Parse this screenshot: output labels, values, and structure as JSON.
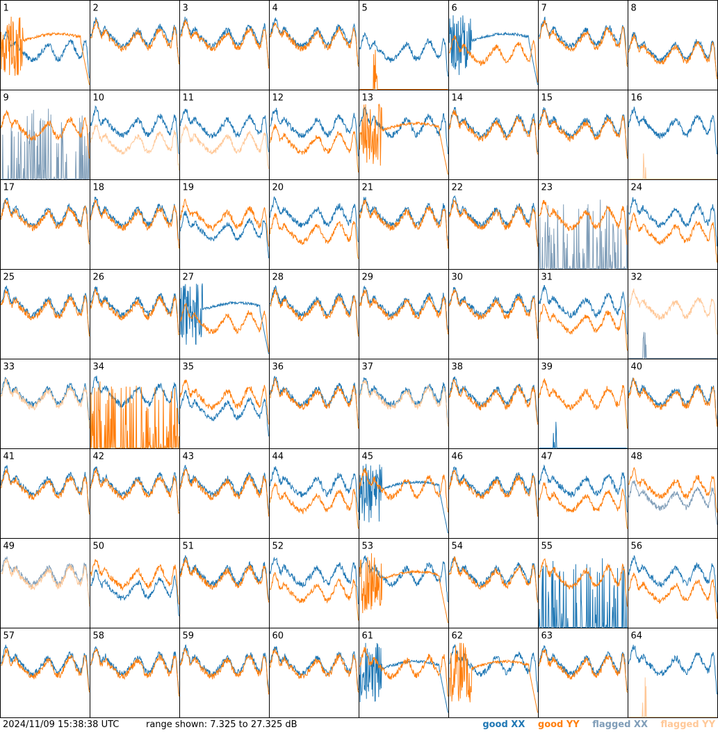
{
  "footer": {
    "timestamp": "2024/11/09 15:38:38 UTC",
    "range_text": "range shown: 7.325 to 27.325 dB"
  },
  "legend": {
    "good_xx": "good XX",
    "good_yy": "good YY",
    "flagged_xx": "flagged XX",
    "flagged_yy": "flagged YY"
  },
  "colors": {
    "good_xx": "#1f77b4",
    "good_yy": "#ff7f0e",
    "flagged_xx": "#7f9db8",
    "flagged_yy": "#ffc898"
  },
  "chart_data": {
    "type": "line",
    "grid": "8x8 small multiples",
    "ylim_db": [
      7.325,
      27.325
    ],
    "panels": [
      {
        "label": "1",
        "xx": "sag-good",
        "yy": "broken-good"
      },
      {
        "label": "2",
        "xx": "normal-good",
        "yy": "normal-good"
      },
      {
        "label": "3",
        "xx": "normal-good",
        "yy": "normal-good"
      },
      {
        "label": "4",
        "xx": "normal-good",
        "yy": "normal-good"
      },
      {
        "label": "5",
        "xx": "sag-good",
        "yy": "dead-good"
      },
      {
        "label": "6",
        "xx": "broken-good",
        "yy": "sag-good"
      },
      {
        "label": "7",
        "xx": "normal-good",
        "yy": "normal-good"
      },
      {
        "label": "8",
        "xx": "sag-good",
        "yy": "sag-good"
      },
      {
        "label": "9",
        "xx": "spikes-flagged",
        "yy": "normal-good"
      },
      {
        "label": "10",
        "xx": "normal-good",
        "yy": "sag-flagged"
      },
      {
        "label": "11",
        "xx": "normal-good",
        "yy": "sag-flagged"
      },
      {
        "label": "12",
        "xx": "normal-good",
        "yy": "sag-good"
      },
      {
        "label": "13",
        "xx": "normal-good",
        "yy": "broken-good"
      },
      {
        "label": "14",
        "xx": "normal-good",
        "yy": "normal-good"
      },
      {
        "label": "15",
        "xx": "normal-good",
        "yy": "normal-good"
      },
      {
        "label": "16",
        "xx": "normal-good",
        "yy": "dead-flagged"
      },
      {
        "label": "17",
        "xx": "normal-good",
        "yy": "normal-good"
      },
      {
        "label": "18",
        "xx": "normal-good",
        "yy": "normal-good"
      },
      {
        "label": "19",
        "xx": "sag-good",
        "yy": "normal-good"
      },
      {
        "label": "20",
        "xx": "normal-good",
        "yy": "sag-good"
      },
      {
        "label": "21",
        "xx": "normal-good",
        "yy": "normal-good"
      },
      {
        "label": "22",
        "xx": "normal-good",
        "yy": "normal-good"
      },
      {
        "label": "23",
        "xx": "spikes-flagged",
        "yy": "normal-good"
      },
      {
        "label": "24",
        "xx": "normal-good",
        "yy": "sag-good"
      },
      {
        "label": "25",
        "xx": "normal-good",
        "yy": "normal-good"
      },
      {
        "label": "26",
        "xx": "normal-good",
        "yy": "normal-good"
      },
      {
        "label": "27",
        "xx": "broken-good",
        "yy": "sag-good"
      },
      {
        "label": "28",
        "xx": "normal-good",
        "yy": "normal-good"
      },
      {
        "label": "29",
        "xx": "normal-good",
        "yy": "normal-good"
      },
      {
        "label": "30",
        "xx": "normal-good",
        "yy": "normal-good"
      },
      {
        "label": "31",
        "xx": "normal-good",
        "yy": "sag-good"
      },
      {
        "label": "32",
        "xx": "dead-flagged",
        "yy": "normal-flagged"
      },
      {
        "label": "33",
        "xx": "normal-good",
        "yy": "normal-flagged"
      },
      {
        "label": "34",
        "xx": "normal-good",
        "yy": "spikes-good"
      },
      {
        "label": "35",
        "xx": "sag-good",
        "yy": "normal-good"
      },
      {
        "label": "36",
        "xx": "normal-good",
        "yy": "normal-good"
      },
      {
        "label": "37",
        "xx": "normal-good",
        "yy": "normal-flagged"
      },
      {
        "label": "38",
        "xx": "normal-good",
        "yy": "normal-good"
      },
      {
        "label": "39",
        "xx": "dead-good",
        "yy": "normal-good"
      },
      {
        "label": "40",
        "xx": "normal-good",
        "yy": "normal-good"
      },
      {
        "label": "41",
        "xx": "normal-good",
        "yy": "normal-good"
      },
      {
        "label": "42",
        "xx": "normal-good",
        "yy": "normal-good"
      },
      {
        "label": "43",
        "xx": "normal-good",
        "yy": "normal-good"
      },
      {
        "label": "44",
        "xx": "normal-good",
        "yy": "sag-good"
      },
      {
        "label": "45",
        "xx": "broken-good",
        "yy": "normal-good"
      },
      {
        "label": "46",
        "xx": "normal-good",
        "yy": "normal-good"
      },
      {
        "label": "47",
        "xx": "normal-good",
        "yy": "sag-good"
      },
      {
        "label": "48",
        "xx": "sag-flagged",
        "yy": "normal-good"
      },
      {
        "label": "49",
        "xx": "normal-flagged",
        "yy": "normal-flagged"
      },
      {
        "label": "50",
        "xx": "sag-good",
        "yy": "normal-good"
      },
      {
        "label": "51",
        "xx": "normal-good",
        "yy": "normal-good"
      },
      {
        "label": "52",
        "xx": "normal-good",
        "yy": "sag-good"
      },
      {
        "label": "53",
        "xx": "normal-good",
        "yy": "broken-good"
      },
      {
        "label": "54",
        "xx": "normal-good",
        "yy": "normal-good"
      },
      {
        "label": "55",
        "xx": "spikes-good",
        "yy": "normal-good"
      },
      {
        "label": "56",
        "xx": "normal-good",
        "yy": "sag-good"
      },
      {
        "label": "57",
        "xx": "normal-good",
        "yy": "normal-good"
      },
      {
        "label": "58",
        "xx": "normal-good",
        "yy": "normal-good"
      },
      {
        "label": "59",
        "xx": "normal-good",
        "yy": "normal-good"
      },
      {
        "label": "60",
        "xx": "normal-good",
        "yy": "normal-good"
      },
      {
        "label": "61",
        "xx": "broken-good",
        "yy": "normal-good"
      },
      {
        "label": "62",
        "xx": "normal-good",
        "yy": "broken-good"
      },
      {
        "label": "63",
        "xx": "normal-good",
        "yy": "normal-good"
      },
      {
        "label": "64",
        "xx": "normal-good",
        "yy": "dead-flagged"
      }
    ]
  }
}
